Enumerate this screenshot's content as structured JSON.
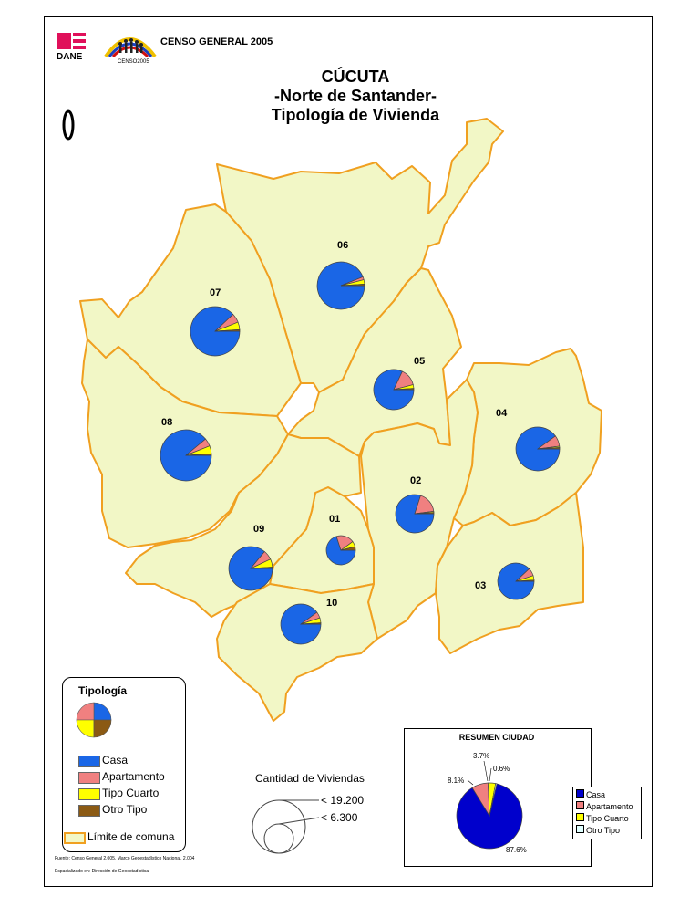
{
  "header": {
    "org": "DANE",
    "census_logo": "CENSO2005",
    "census_label": "CENSO GENERAL 2005"
  },
  "title": {
    "line1": "CÚCUTA",
    "line2": "-Norte de Santander-",
    "line3": "Tipología de Vivienda"
  },
  "north_arrow_icon": "north-arrow-icon",
  "colors": {
    "casa": "#1a66e6",
    "apartamento": "#f08080",
    "tipo_cuarto": "#ffff00",
    "otro_tipo": "#8b5a14",
    "map_fill": "#f2f7c6",
    "border": "#f0a020",
    "summary_casa": "#0000cc"
  },
  "comunas": [
    {
      "id": "01",
      "shares": {
        "casa": 0.7,
        "apartamento": 0.2,
        "tipo_cuarto": 0.06,
        "otro_tipo": 0.04
      }
    },
    {
      "id": "02",
      "shares": {
        "casa": 0.8,
        "apartamento": 0.18,
        "tipo_cuarto": 0.01,
        "otro_tipo": 0.01
      }
    },
    {
      "id": "03",
      "shares": {
        "casa": 0.88,
        "apartamento": 0.07,
        "tipo_cuarto": 0.04,
        "otro_tipo": 0.01
      }
    },
    {
      "id": "04",
      "shares": {
        "casa": 0.9,
        "apartamento": 0.08,
        "tipo_cuarto": 0.01,
        "otro_tipo": 0.01
      }
    },
    {
      "id": "05",
      "shares": {
        "casa": 0.82,
        "apartamento": 0.14,
        "tipo_cuarto": 0.03,
        "otro_tipo": 0.01
      }
    },
    {
      "id": "06",
      "shares": {
        "casa": 0.94,
        "apartamento": 0.02,
        "tipo_cuarto": 0.03,
        "otro_tipo": 0.01
      }
    },
    {
      "id": "07",
      "shares": {
        "casa": 0.88,
        "apartamento": 0.06,
        "tipo_cuarto": 0.05,
        "otro_tipo": 0.01
      }
    },
    {
      "id": "08",
      "shares": {
        "casa": 0.89,
        "apartamento": 0.05,
        "tipo_cuarto": 0.05,
        "otro_tipo": 0.01
      }
    },
    {
      "id": "09",
      "shares": {
        "casa": 0.86,
        "apartamento": 0.07,
        "tipo_cuarto": 0.06,
        "otro_tipo": 0.01
      }
    },
    {
      "id": "10",
      "shares": {
        "casa": 0.9,
        "apartamento": 0.05,
        "tipo_cuarto": 0.04,
        "otro_tipo": 0.01
      }
    }
  ],
  "legend": {
    "title": "Tipología",
    "items": [
      "Casa",
      "Apartamento",
      "Tipo Cuarto",
      "Otro Tipo"
    ],
    "boundary": "Límite de comuna"
  },
  "size_legend": {
    "title": "Cantidad de Viviendas",
    "large": "< 19.200",
    "small": "< 6.300"
  },
  "footnotes": {
    "source": "Fuente: Censo General 2.005, Marco Geoestadístico Nacional, 2.004",
    "made_by": "Espacializado en: Dirección de Geoestadística"
  },
  "summary": {
    "title": "RESUMEN CIUDAD",
    "slices": [
      {
        "label": "Casa",
        "pct": 87.6,
        "text": "87.6%"
      },
      {
        "label": "Apartamento",
        "pct": 8.1,
        "text": "8.1%"
      },
      {
        "label": "Tipo Cuarto",
        "pct": 3.7,
        "text": "3.7%"
      },
      {
        "label": "Otro Tipo",
        "pct": 0.6,
        "text": "0.6%"
      }
    ]
  }
}
